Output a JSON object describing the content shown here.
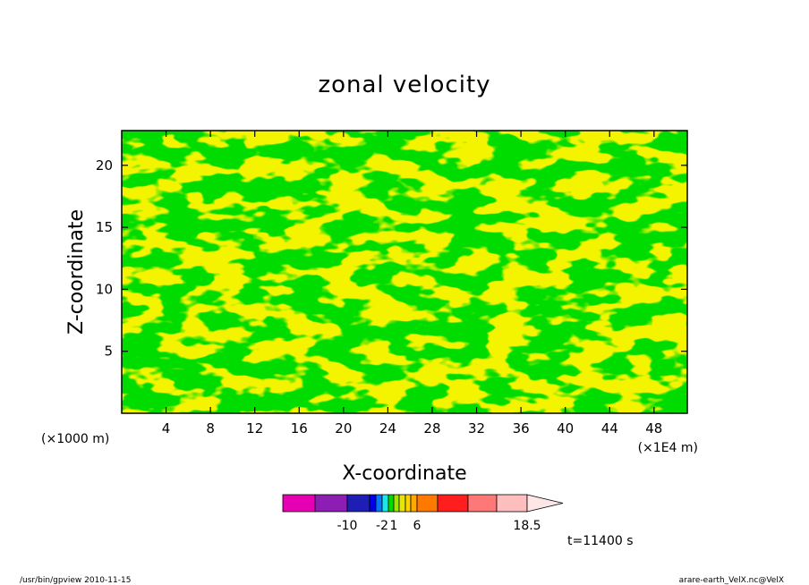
{
  "chart_data": {
    "type": "heatmap",
    "title": "zonal velocity",
    "xlabel": "X-coordinate",
    "ylabel": "Z-coordinate",
    "x_unit": "(×1E4 m)",
    "y_unit": "(×1000 m)",
    "xlim": [
      0,
      51
    ],
    "ylim": [
      0,
      22.8
    ],
    "x_ticks": [
      "4",
      "8",
      "12",
      "16",
      "20",
      "24",
      "28",
      "32",
      "36",
      "40",
      "44",
      "48"
    ],
    "y_ticks": [
      "5",
      "10",
      "15",
      "20"
    ],
    "colorbar": {
      "colors": [
        "#e600b4",
        "#8c1eb4",
        "#1e1eb4",
        "#0000e6",
        "#0078ff",
        "#1ee6e6",
        "#00dc00",
        "#a0e600",
        "#e6e600",
        "#ffd200",
        "#ffaa00",
        "#ff7800",
        "#ff1e1e",
        "#ff7878",
        "#ffbebe",
        "#ffe6e6"
      ],
      "labels": [
        "-10",
        "-2",
        "1",
        "6",
        "18.5"
      ]
    },
    "dominant_levels": [
      {
        "range": "1 to 2",
        "color": "#00dc00"
      },
      {
        "range": "2 to 3",
        "color": "#e6e600"
      }
    ],
    "time_label": "t=11400 s"
  },
  "footer": {
    "left": "/usr/bin/gpview   2010-11-15",
    "right": "arare-earth_VelX.nc@VelX"
  }
}
